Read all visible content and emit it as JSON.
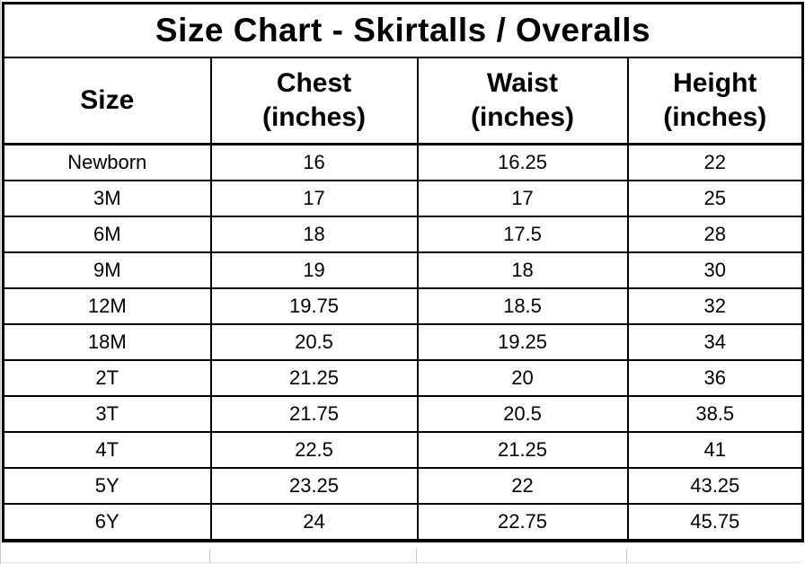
{
  "title": "Size Chart - Skirtalls / Overalls",
  "chart_data": {
    "type": "table",
    "title": "Size Chart - Skirtalls / Overalls",
    "columns": [
      "Size",
      "Chest (inches)",
      "Waist (inches)",
      "Height (inches)"
    ],
    "rows": [
      [
        "Newborn",
        "16",
        "16.25",
        "22"
      ],
      [
        "3M",
        "17",
        "17",
        "25"
      ],
      [
        "6M",
        "18",
        "17.5",
        "28"
      ],
      [
        "9M",
        "19",
        "18",
        "30"
      ],
      [
        "12M",
        "19.75",
        "18.5",
        "32"
      ],
      [
        "18M",
        "20.5",
        "19.25",
        "34"
      ],
      [
        "2T",
        "21.25",
        "20",
        "36"
      ],
      [
        "3T",
        "21.75",
        "20.5",
        "38.5"
      ],
      [
        "4T",
        "22.5",
        "21.25",
        "41"
      ],
      [
        "5Y",
        "23.25",
        "22",
        "43.25"
      ],
      [
        "6Y",
        "24",
        "22.75",
        "45.75"
      ]
    ]
  },
  "headers": [
    {
      "line1": "Size",
      "line2": ""
    },
    {
      "line1": "Chest",
      "line2": "(inches)"
    },
    {
      "line1": "Waist",
      "line2": "(inches)"
    },
    {
      "line1": "Height",
      "line2": "(inches)"
    }
  ],
  "colors": {
    "text": "#000000",
    "border": "#000000",
    "background": "#ffffff",
    "gridline_gray": "#c9c9c9"
  }
}
